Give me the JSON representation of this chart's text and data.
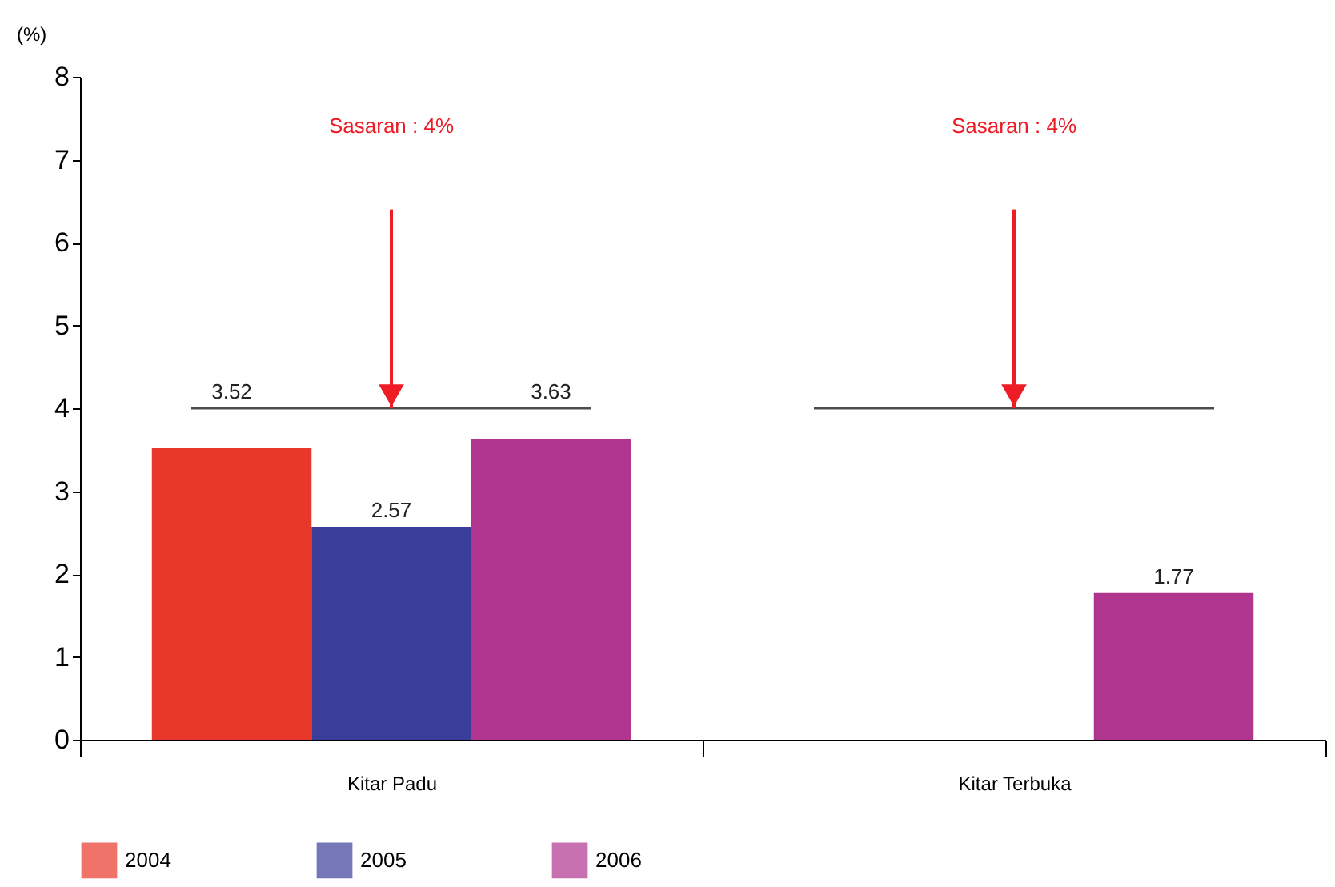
{
  "chart_data": {
    "type": "bar",
    "ylabel": "(%)",
    "categories": [
      "Kitar Padu",
      "Kitar Terbuka"
    ],
    "series": [
      {
        "name": "2004",
        "color": "#e8382a",
        "values": [
          3.52,
          null
        ]
      },
      {
        "name": "2005",
        "color": "#3b3d9a",
        "values": [
          2.57,
          null
        ]
      },
      {
        "name": "2006",
        "color": "#b0358f",
        "values": [
          3.63,
          1.77
        ]
      }
    ],
    "ylim": [
      0,
      8
    ],
    "yticks": [
      0,
      1,
      2,
      3,
      4,
      5,
      6,
      7,
      8
    ],
    "grid": false,
    "legend": "bottom",
    "data_labels": true,
    "ref_lines": [
      {
        "axis": "y",
        "value": 4,
        "color": "#000000"
      }
    ],
    "annotations": [
      "Sasaran : 4%",
      "Sasaran : 4%"
    ]
  }
}
